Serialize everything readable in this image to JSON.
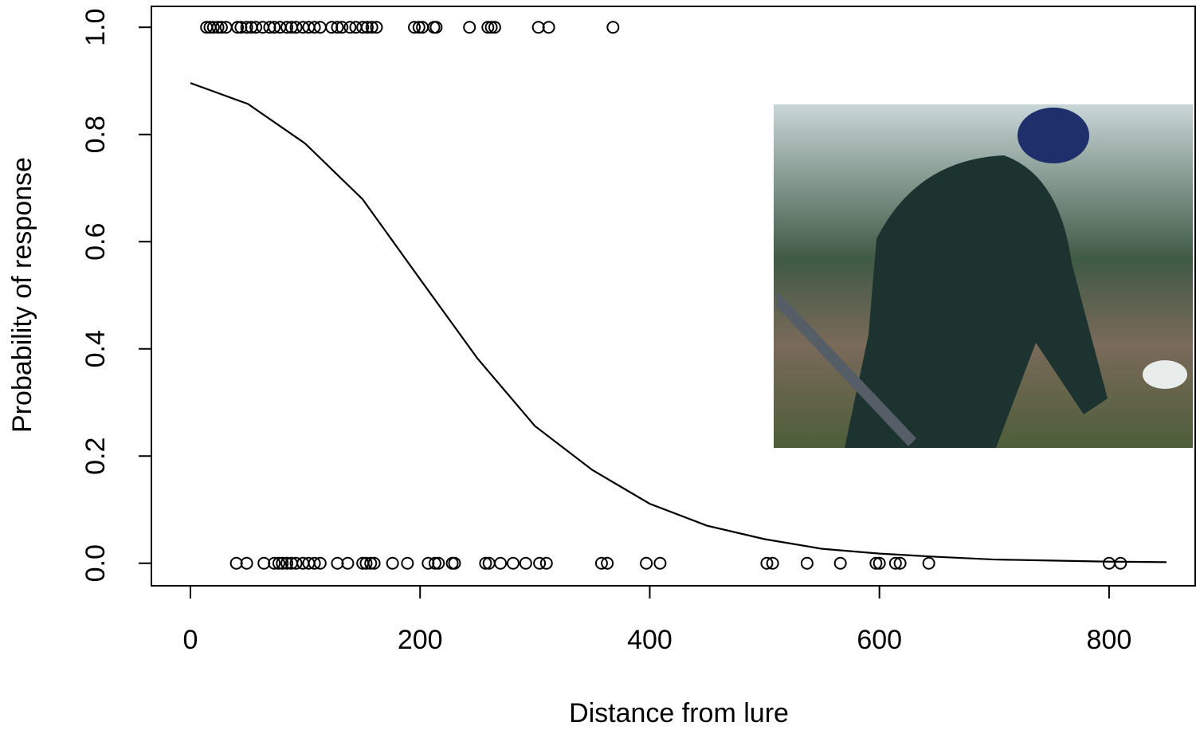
{
  "chart_data": {
    "type": "scatter",
    "xlabel": "Distance from lure",
    "ylabel": "Probability of response",
    "xlim": [
      -34,
      875
    ],
    "ylim": [
      -0.042,
      1.039
    ],
    "xticks": [
      0,
      200,
      400,
      600,
      800
    ],
    "yticks": [
      {
        "value": 0,
        "label": "0.0"
      },
      0.2,
      0.4,
      0.6,
      0.8,
      {
        "value": 1,
        "label": "1.0"
      }
    ],
    "color": "#000000",
    "points": {
      "x": [
        14,
        17,
        20,
        24,
        27,
        31,
        41,
        44,
        49,
        53,
        57,
        63,
        69,
        73,
        78,
        84,
        88,
        92,
        98,
        103,
        108,
        113,
        123,
        128,
        132,
        139,
        144,
        150,
        154,
        158,
        162,
        195,
        199,
        202,
        212,
        214,
        243,
        259,
        262,
        265,
        303,
        312,
        368,
        40,
        49,
        64,
        73,
        77,
        80,
        84,
        88,
        92,
        98,
        103,
        108,
        113,
        128,
        137,
        150,
        153,
        157,
        160,
        176,
        189,
        207,
        213,
        216,
        228,
        230,
        257,
        260,
        270,
        281,
        292,
        304,
        310,
        358,
        363,
        397,
        409,
        502,
        507,
        537,
        566,
        597,
        600,
        614,
        618,
        643,
        800,
        810
      ],
      "y": [
        1,
        1,
        1,
        1,
        1,
        1,
        1,
        1,
        1,
        1,
        1,
        1,
        1,
        1,
        1,
        1,
        1,
        1,
        1,
        1,
        1,
        1,
        1,
        1,
        1,
        1,
        1,
        1,
        1,
        1,
        1,
        1,
        1,
        1,
        1,
        1,
        1,
        1,
        1,
        1,
        1,
        1,
        1,
        0,
        0,
        0,
        0,
        0,
        0,
        0,
        0,
        0,
        0,
        0,
        0,
        0,
        0,
        0,
        0,
        0,
        0,
        0,
        0,
        0,
        0,
        0,
        0,
        0,
        0,
        0,
        0,
        0,
        0,
        0,
        0,
        0,
        0,
        0,
        0,
        0,
        0,
        0,
        0,
        0,
        0,
        0,
        0,
        0,
        0,
        0,
        0
      ]
    },
    "curve": {
      "x": [
        0,
        50,
        100,
        150,
        200,
        250,
        300,
        350,
        400,
        450,
        500,
        550,
        600,
        650,
        700,
        750,
        800,
        850
      ],
      "y": [
        0.896,
        0.857,
        0.783,
        0.679,
        0.53,
        0.382,
        0.256,
        0.174,
        0.111,
        0.07,
        0.045,
        0.027,
        0.018,
        0.012,
        0.007,
        0.005,
        0.003,
        0.002
      ]
    }
  }
}
